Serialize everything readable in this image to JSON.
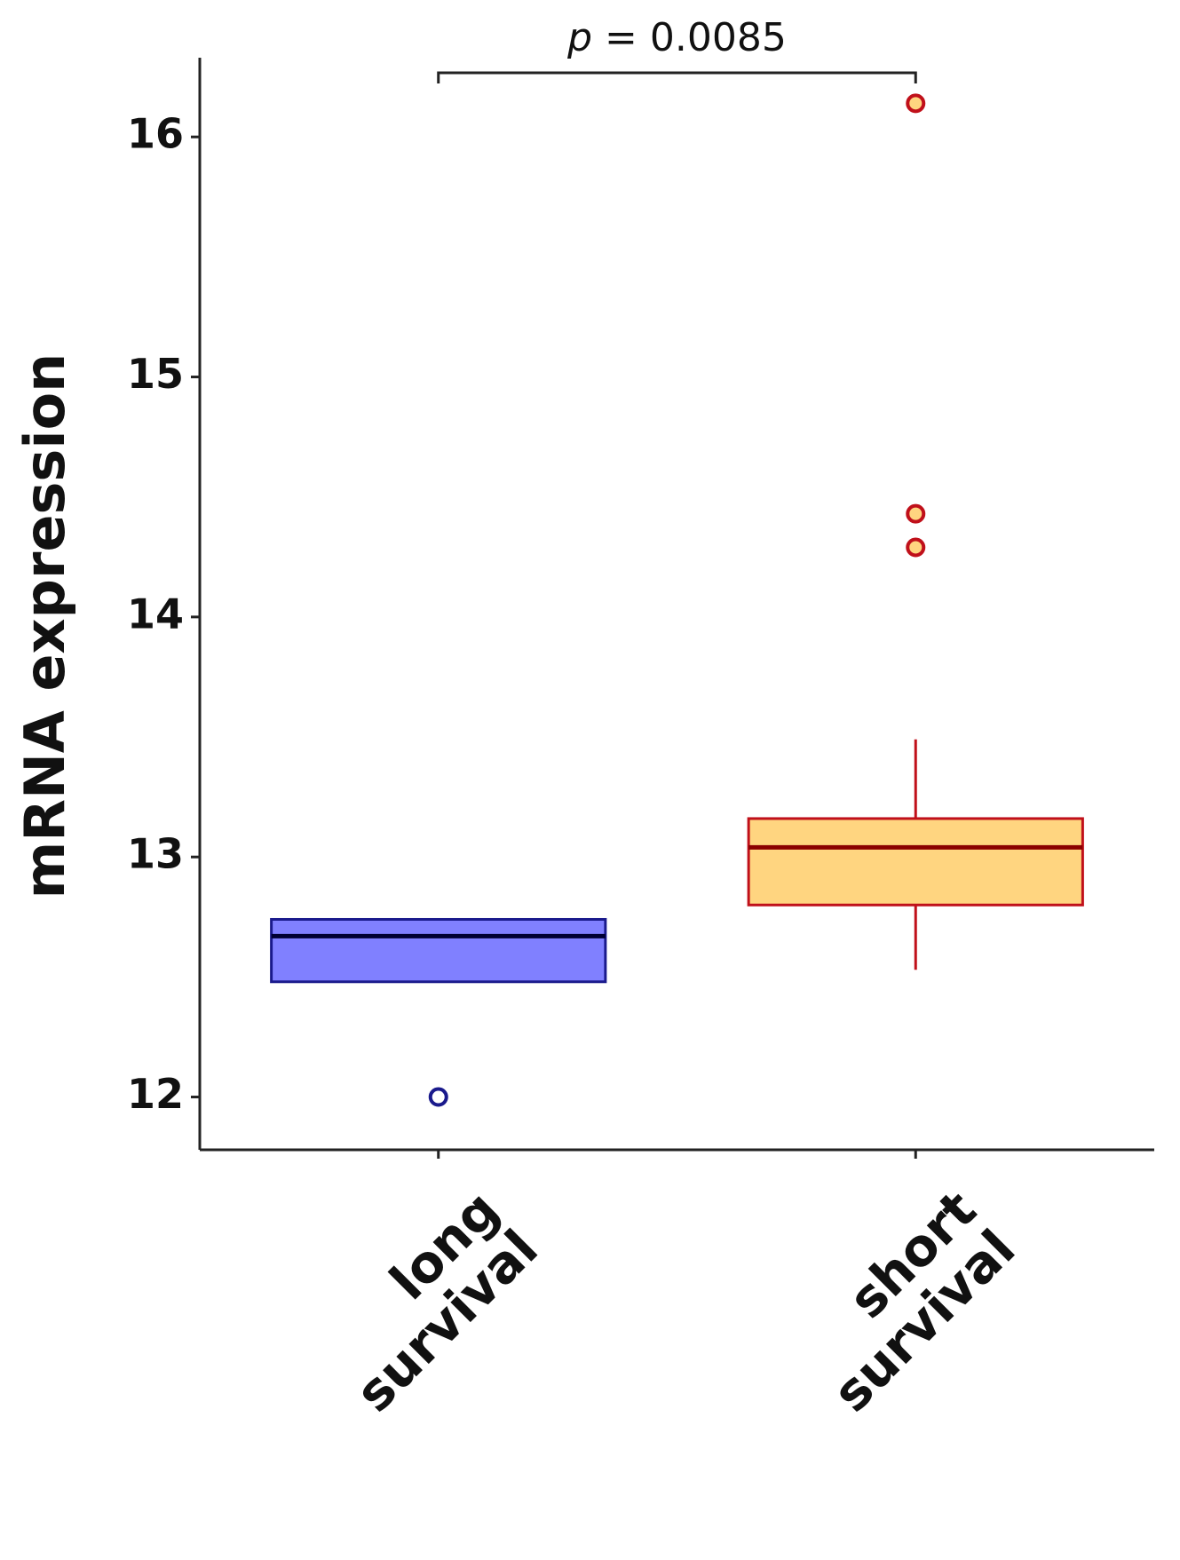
{
  "chart_data": {
    "type": "box",
    "y_label": "mRNA expression",
    "annotation": "p = 0.0085",
    "categories": [
      "long survival",
      "short survival"
    ],
    "boxes": [
      {
        "whislo": 12.48,
        "q1": 12.48,
        "med": 12.67,
        "q3": 12.74,
        "whishi": 12.74,
        "fliers": [
          12.0
        ],
        "color": "#8080ff",
        "edge_color": "#1a1a8c",
        "median_color": "#000033"
      },
      {
        "whislo": 12.53,
        "q1": 12.8,
        "med": 13.04,
        "q3": 13.16,
        "whishi": 13.49,
        "fliers": [
          16.14,
          14.43,
          14.29
        ],
        "color": "#ffd580",
        "edge_color": "#c0101a",
        "median_color": "#8b0000"
      }
    ],
    "ylim": [
      11.78,
      16.33
    ],
    "yticks": [
      12,
      13,
      14,
      15,
      16
    ]
  }
}
